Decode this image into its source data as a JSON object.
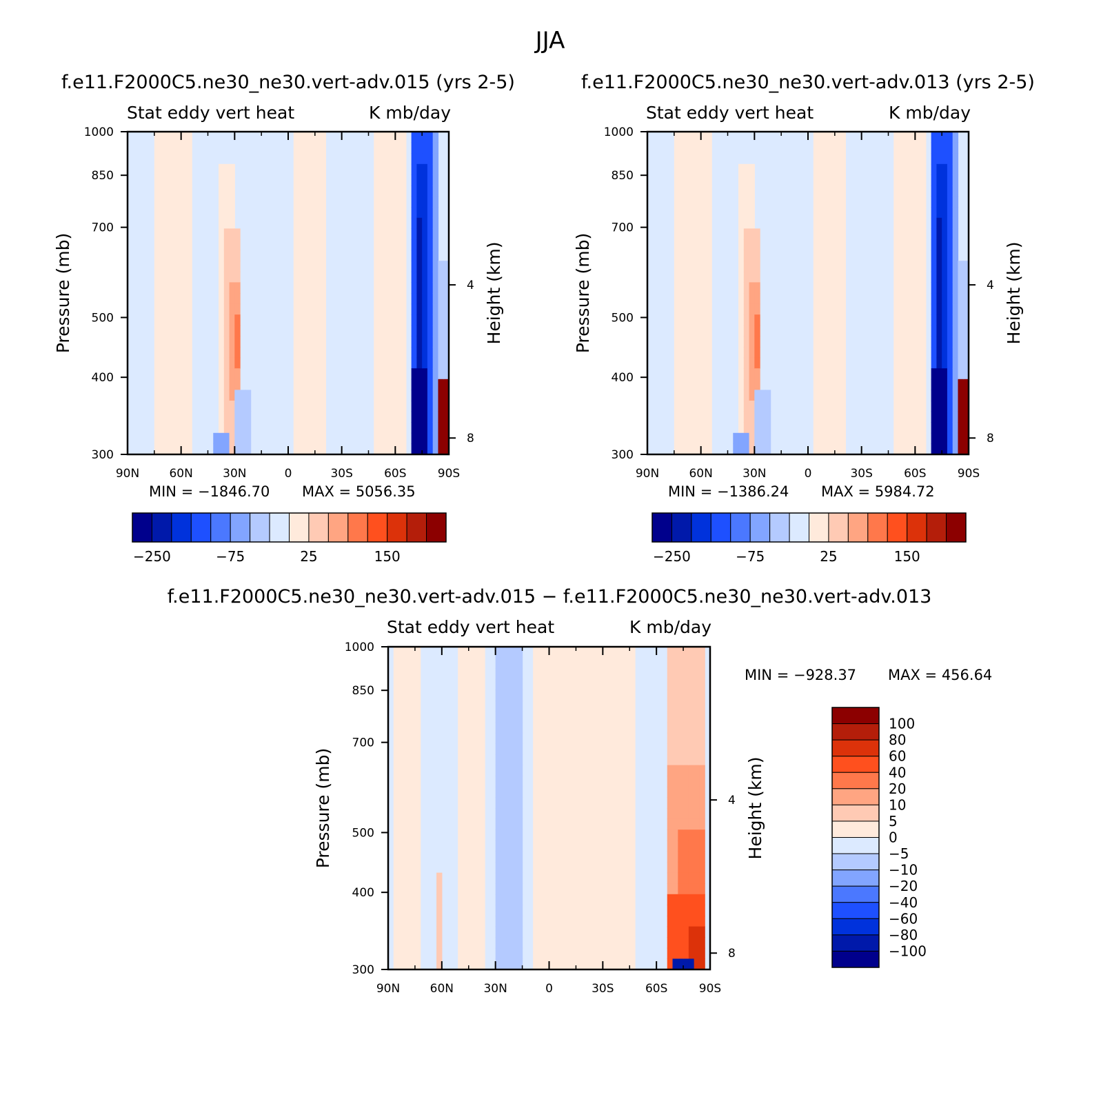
{
  "suptitle": "JJA",
  "colors": {
    "levels_blue_to_red": [
      "#00008c",
      "#0019aa",
      "#0032dc",
      "#1e50ff",
      "#4b78ff",
      "#82a5ff",
      "#b4caff",
      "#dceaff",
      "#ffeadc",
      "#ffcab4",
      "#ffa582",
      "#ff784b",
      "#ff501e",
      "#dc320a",
      "#b41e0a",
      "#8c0000"
    ]
  },
  "chart_data": [
    {
      "type": "heatmap",
      "title": "f.e11.F2000C5.ne30_ne30.vert-adv.015 (yrs 2-5)",
      "variable": "Stat eddy vert heat",
      "units": "K mb/day",
      "xlabel": "",
      "ylabel": "Pressure (mb)",
      "ylabel_right": "Height (km)",
      "x_ticks": [
        "90N",
        "60N",
        "30N",
        "0",
        "30S",
        "60S",
        "90S"
      ],
      "y_ticks": [
        "300",
        "400",
        "500",
        "700",
        "850",
        "1000"
      ],
      "y_right_ticks": [
        "8",
        "4"
      ],
      "xlim": [
        90,
        -90
      ],
      "ylim": [
        1000,
        300
      ],
      "y_scale": "log",
      "min_label": "MIN = −1846.70",
      "max_label": "MAX = 5056.35",
      "min": -1846.7,
      "max": 5056.35,
      "colorbar_labels": [
        "−250",
        "−75",
        "25",
        "150"
      ]
    },
    {
      "type": "heatmap",
      "title": "f.e11.F2000C5.ne30_ne30.vert-adv.013 (yrs 2-5)",
      "variable": "Stat eddy vert heat",
      "units": "K mb/day",
      "xlabel": "",
      "ylabel": "Pressure (mb)",
      "ylabel_right": "Height (km)",
      "x_ticks": [
        "90N",
        "60N",
        "30N",
        "0",
        "30S",
        "60S",
        "90S"
      ],
      "y_ticks": [
        "300",
        "400",
        "500",
        "700",
        "850",
        "1000"
      ],
      "y_right_ticks": [
        "8",
        "4"
      ],
      "xlim": [
        90,
        -90
      ],
      "ylim": [
        1000,
        300
      ],
      "y_scale": "log",
      "min_label": "MIN = −1386.24",
      "max_label": "MAX = 5984.72",
      "min": -1386.24,
      "max": 5984.72,
      "colorbar_labels": [
        "−250",
        "−75",
        "25",
        "150"
      ]
    },
    {
      "type": "heatmap",
      "title": "f.e11.F2000C5.ne30_ne30.vert-adv.015 − f.e11.F2000C5.ne30_ne30.vert-adv.013",
      "variable": "Stat eddy vert heat",
      "units": "K mb/day",
      "xlabel": "",
      "ylabel": "Pressure (mb)",
      "ylabel_right": "Height (km)",
      "x_ticks": [
        "90N",
        "60N",
        "30N",
        "0",
        "30S",
        "60S",
        "90S"
      ],
      "y_ticks": [
        "300",
        "400",
        "500",
        "700",
        "850",
        "1000"
      ],
      "y_right_ticks": [
        "8",
        "4"
      ],
      "xlim": [
        90,
        -90
      ],
      "ylim": [
        1000,
        300
      ],
      "y_scale": "log",
      "min_label": "MIN = −928.37",
      "max_label": "MAX = 456.64",
      "min": -928.37,
      "max": 456.64,
      "colorbar_labels": [
        "100",
        "80",
        "60",
        "40",
        "20",
        "10",
        "5",
        "0",
        "−5",
        "−10",
        "−20",
        "−40",
        "−60",
        "−80",
        "−100"
      ]
    }
  ]
}
